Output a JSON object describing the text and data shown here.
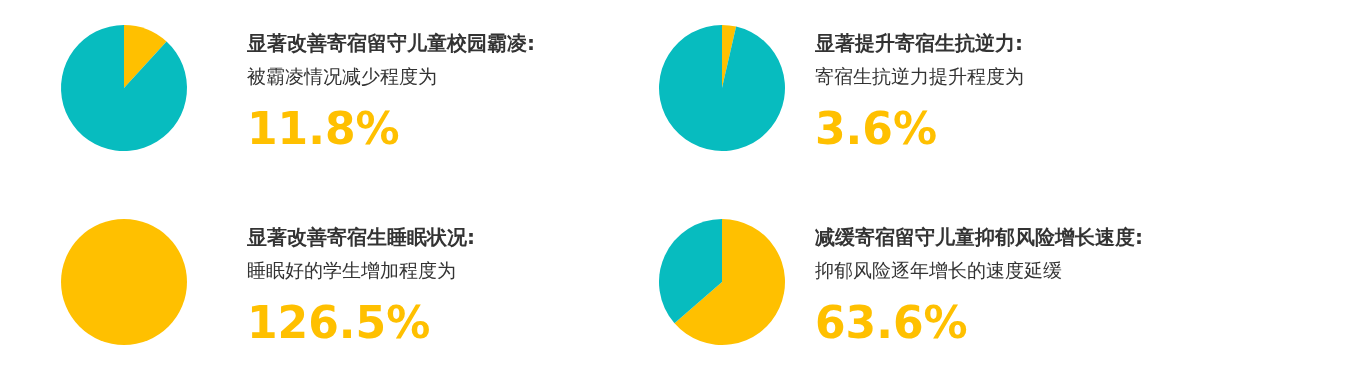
{
  "chart_data": [
    {
      "type": "pie",
      "title": "显著改善寄宿留守儿童校园霸凌:",
      "subtitle": "被霸凌情况减少程度为",
      "annotations": [
        "11.8%"
      ],
      "categories": [
        null,
        null
      ],
      "values": [
        11.8,
        88.2
      ],
      "colors": [
        "#ffc000",
        "#07bcbf"
      ]
    },
    {
      "type": "pie",
      "title": "显著提升寄宿生抗逆力:",
      "subtitle": "寄宿生抗逆力提升程度为",
      "annotations": [
        "3.6%"
      ],
      "categories": [
        null,
        null
      ],
      "values": [
        3.6,
        96.4
      ],
      "colors": [
        "#ffc000",
        "#07bcbf"
      ]
    },
    {
      "type": "pie",
      "title": "显著改善寄宿生睡眠状况:",
      "subtitle": "睡眠好的学生增加程度为",
      "annotations": [
        "126.5%"
      ],
      "categories": [
        null
      ],
      "values": [
        100
      ],
      "colors": [
        "#ffc000"
      ]
    },
    {
      "type": "pie",
      "title": "减缓寄宿留守儿童抑郁风险增长速度:",
      "subtitle": "抑郁风险逐年增长的速度延缓",
      "annotations": [
        "63.6%"
      ],
      "categories": [
        null,
        null
      ],
      "values": [
        63.6,
        36.4
      ],
      "colors": [
        "#ffc000",
        "#07bcbf"
      ]
    }
  ]
}
